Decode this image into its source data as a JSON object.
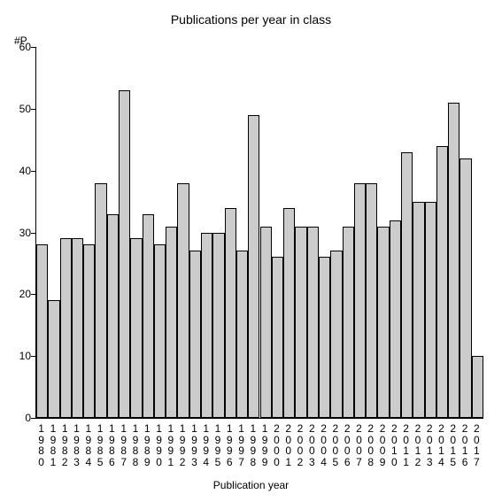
{
  "chart": {
    "type": "bar",
    "title": "Publications per year in class",
    "title_fontsize": 14,
    "xlabel": "Publication year",
    "ylabel": "#P",
    "label_fontsize": 12,
    "background_color": "#ffffff",
    "bar_color": "#cccccc",
    "bar_border_color": "#000000",
    "axis_color": "#000000",
    "text_color": "#000000",
    "ylim": [
      0,
      60
    ],
    "ytick_step": 10,
    "yticks": [
      0,
      10,
      20,
      30,
      40,
      50,
      60
    ],
    "bar_width_ratio": 1.0,
    "categories": [
      "1980",
      "1981",
      "1982",
      "1983",
      "1984",
      "1985",
      "1986",
      "1987",
      "1988",
      "1989",
      "1990",
      "1991",
      "1992",
      "1993",
      "1994",
      "1995",
      "1996",
      "1997",
      "1998",
      "1999",
      "2000",
      "2001",
      "2002",
      "2003",
      "2004",
      "2005",
      "2006",
      "2007",
      "2008",
      "2009",
      "2010",
      "2011",
      "2012",
      "2013",
      "2014",
      "2015",
      "2016",
      "2017"
    ],
    "values": [
      28,
      19,
      29,
      29,
      28,
      38,
      33,
      53,
      29,
      33,
      28,
      31,
      38,
      27,
      30,
      30,
      34,
      27,
      49,
      31,
      26,
      34,
      31,
      31,
      26,
      27,
      31,
      38,
      38,
      31,
      32,
      43,
      35,
      35,
      44,
      51,
      42,
      10
    ]
  }
}
